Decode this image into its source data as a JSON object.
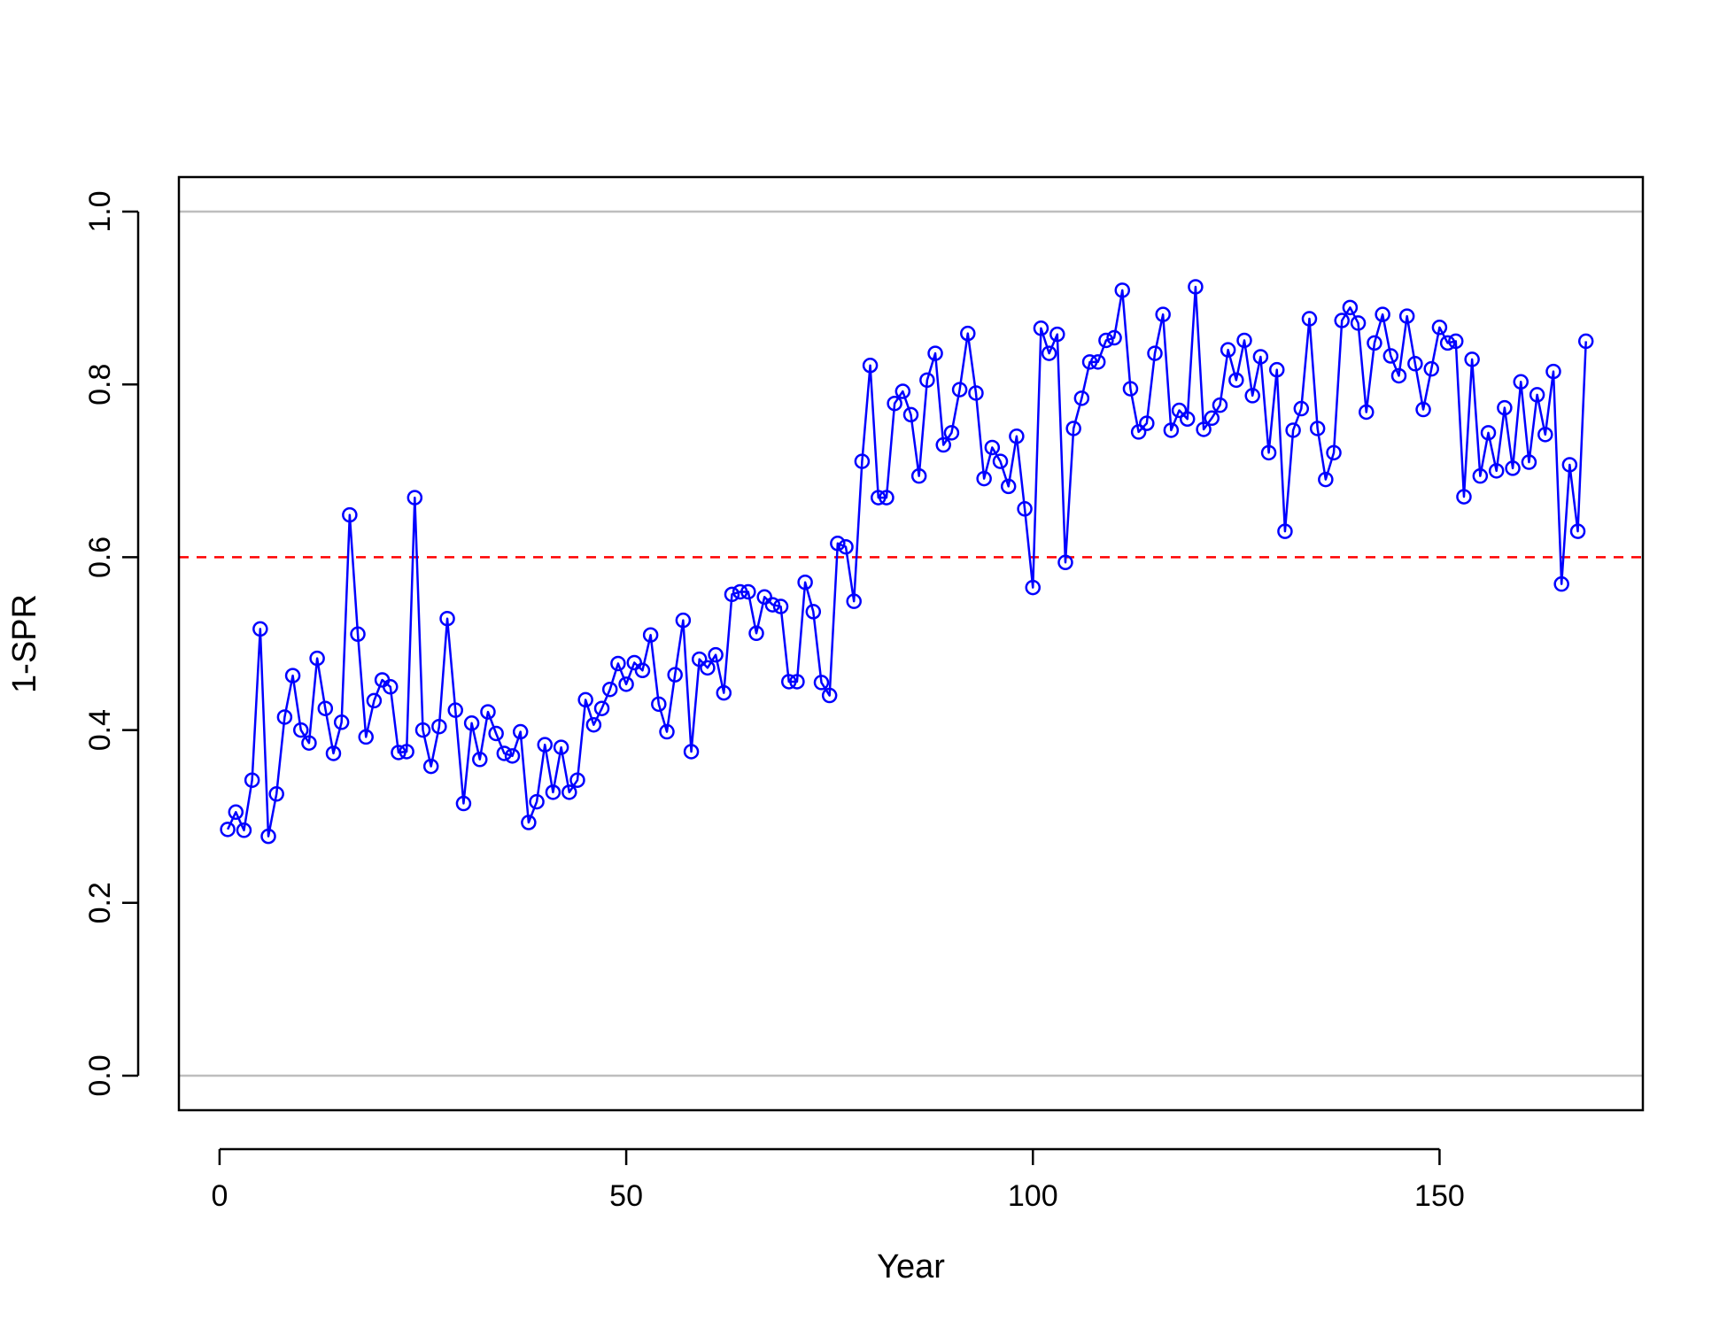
{
  "chart_data": {
    "type": "line",
    "title": "",
    "xlabel": "Year",
    "ylabel": "1-SPR",
    "xlim": [
      -5,
      175
    ],
    "ylim": [
      -0.04,
      1.04
    ],
    "xticks": [
      0,
      50,
      100,
      150
    ],
    "yticks": [
      0.0,
      0.2,
      0.4,
      0.6,
      0.8,
      1.0
    ],
    "xtick_labels": [
      "0",
      "50",
      "100",
      "150"
    ],
    "ytick_labels": [
      "0.0",
      "0.2",
      "0.4",
      "0.6",
      "0.8",
      "1.0"
    ],
    "grid": false,
    "reference_lines": [
      {
        "y": 0.0,
        "color": "#bebebe",
        "style": "solid"
      },
      {
        "y": 1.0,
        "color": "#bebebe",
        "style": "solid"
      },
      {
        "y": 0.6,
        "color": "#ff0000",
        "style": "dashed"
      }
    ],
    "series": [
      {
        "color": "#0000ff",
        "marker": "open-circle",
        "x": [
          1,
          2,
          3,
          4,
          5,
          6,
          7,
          8,
          9,
          10,
          11,
          12,
          13,
          14,
          15,
          16,
          17,
          18,
          19,
          20,
          21,
          22,
          23,
          24,
          25,
          26,
          27,
          28,
          29,
          30,
          31,
          32,
          33,
          34,
          35,
          36,
          37,
          38,
          39,
          40,
          41,
          42,
          43,
          44,
          45,
          46,
          47,
          48,
          49,
          50,
          51,
          52,
          53,
          54,
          55,
          56,
          57,
          58,
          59,
          60,
          61,
          62,
          63,
          64,
          65,
          66,
          67,
          68,
          69,
          70,
          71,
          72,
          73,
          74,
          75,
          76,
          77,
          78,
          79,
          80,
          81,
          82,
          83,
          84,
          85,
          86,
          87,
          88,
          89,
          90,
          91,
          92,
          93,
          94,
          95,
          96,
          97,
          98,
          99,
          100,
          101,
          102,
          103,
          104,
          105,
          106,
          107,
          108,
          109,
          110,
          111,
          112,
          113,
          114,
          115,
          116,
          117,
          118,
          119,
          120,
          121,
          122,
          123,
          124,
          125,
          126,
          127,
          128,
          129,
          130,
          131,
          132,
          133,
          134,
          135,
          136,
          137,
          138,
          139,
          140,
          141,
          142,
          143,
          144,
          145,
          146,
          147,
          148,
          149,
          150,
          151,
          152,
          153,
          154,
          155,
          156,
          157,
          158,
          159,
          160,
          161,
          162,
          163,
          164,
          165,
          166,
          167,
          168
        ],
        "y": [
          0.285,
          0.305,
          0.284,
          0.342,
          0.517,
          0.277,
          0.326,
          0.415,
          0.463,
          0.4,
          0.385,
          0.483,
          0.425,
          0.373,
          0.409,
          0.649,
          0.511,
          0.392,
          0.434,
          0.458,
          0.45,
          0.374,
          0.375,
          0.669,
          0.4,
          0.358,
          0.404,
          0.529,
          0.423,
          0.315,
          0.408,
          0.366,
          0.421,
          0.396,
          0.373,
          0.37,
          0.398,
          0.293,
          0.317,
          0.383,
          0.328,
          0.38,
          0.328,
          0.342,
          0.435,
          0.406,
          0.425,
          0.447,
          0.477,
          0.453,
          0.478,
          0.469,
          0.51,
          0.43,
          0.398,
          0.464,
          0.527,
          0.375,
          0.482,
          0.472,
          0.487,
          0.443,
          0.557,
          0.56,
          0.56,
          0.512,
          0.554,
          0.545,
          0.543,
          0.456,
          0.456,
          0.571,
          0.537,
          0.455,
          0.44,
          0.616,
          0.612,
          0.549,
          0.711,
          0.822,
          0.669,
          0.669,
          0.778,
          0.792,
          0.765,
          0.694,
          0.805,
          0.836,
          0.73,
          0.744,
          0.794,
          0.859,
          0.79,
          0.691,
          0.727,
          0.711,
          0.682,
          0.74,
          0.656,
          0.565,
          0.865,
          0.836,
          0.858,
          0.594,
          0.749,
          0.784,
          0.826,
          0.826,
          0.851,
          0.854,
          0.909,
          0.795,
          0.745,
          0.755,
          0.836,
          0.881,
          0.747,
          0.77,
          0.76,
          0.913,
          0.748,
          0.761,
          0.776,
          0.84,
          0.805,
          0.851,
          0.787,
          0.832,
          0.721,
          0.817,
          0.63,
          0.747,
          0.772,
          0.876,
          0.749,
          0.69,
          0.721,
          0.874,
          0.889,
          0.871,
          0.768,
          0.848,
          0.881,
          0.833,
          0.81,
          0.879,
          0.824,
          0.771,
          0.818,
          0.866,
          0.848,
          0.85,
          0.67,
          0.829,
          0.694,
          0.744,
          0.7,
          0.773,
          0.703,
          0.803,
          0.71,
          0.788,
          0.742,
          0.815,
          0.569,
          0.707,
          0.63,
          0.85
        ]
      }
    ]
  }
}
